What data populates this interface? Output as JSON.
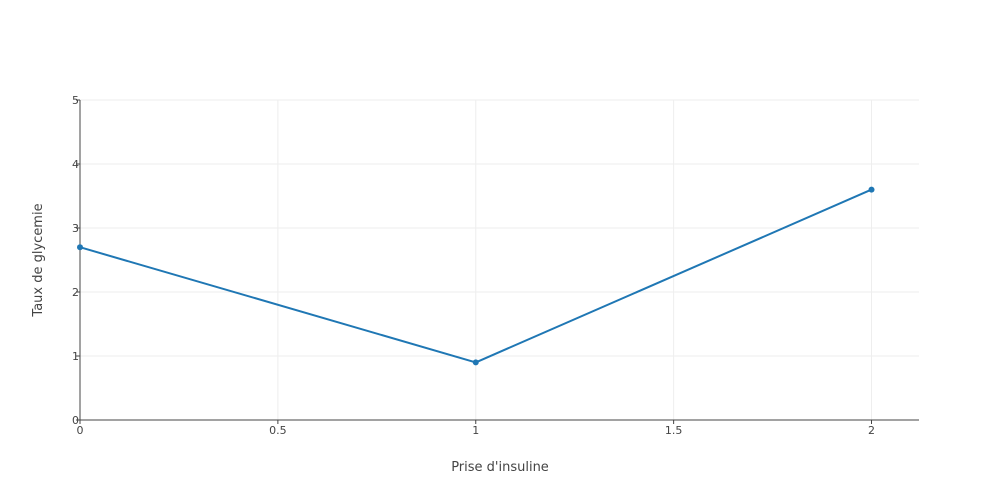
{
  "chart_data": {
    "type": "line",
    "title": "",
    "xlabel": "Prise d'insuline",
    "ylabel": "Taux de glycemie",
    "xlim": [
      0,
      2.12
    ],
    "ylim": [
      0,
      5
    ],
    "x_ticks": [
      0,
      0.5,
      1,
      1.5,
      2
    ],
    "y_ticks": [
      0,
      1,
      2,
      3,
      4,
      5
    ],
    "x_tick_labels": [
      "0",
      "0.5",
      "1",
      "1.5",
      "2"
    ],
    "y_tick_labels": [
      "0",
      "1",
      "2",
      "3",
      "4",
      "5"
    ],
    "grid": true,
    "legend": "none",
    "series": [
      {
        "x": [
          0,
          1,
          2
        ],
        "y": [
          2.7,
          0.9,
          3.6
        ],
        "color": "#1f77b4",
        "mode": "lines+markers"
      }
    ]
  }
}
